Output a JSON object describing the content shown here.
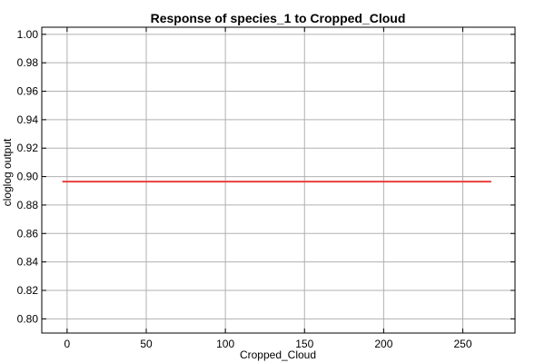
{
  "chart_data": {
    "type": "line",
    "title": "Response of species_1 to Cropped_Cloud",
    "xlabel": "Cropped_Cloud",
    "ylabel": "cloglog output",
    "xlim": [
      -16,
      283
    ],
    "ylim": [
      0.79,
      1.005
    ],
    "xticks": [
      0,
      50,
      100,
      150,
      200,
      250
    ],
    "yticks": [
      0.8,
      0.82,
      0.84,
      0.86,
      0.88,
      0.9,
      0.92,
      0.94,
      0.96,
      0.98,
      1.0
    ],
    "ytick_labels": [
      "0.80",
      "0.82",
      "0.84",
      "0.86",
      "0.88",
      "0.90",
      "0.92",
      "0.94",
      "0.96",
      "0.98",
      "1.00"
    ],
    "grid": true,
    "series": [
      {
        "color": "#e8413c",
        "x": [
          -3,
          268
        ],
        "y": [
          0.8965,
          0.8965
        ]
      }
    ]
  }
}
